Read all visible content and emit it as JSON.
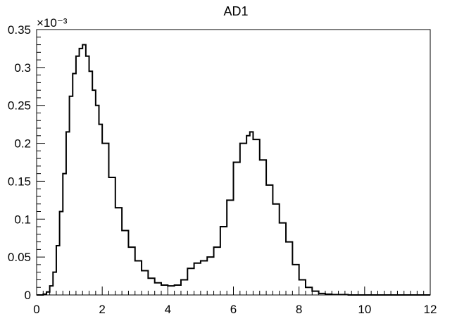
{
  "chart_data": {
    "type": "line",
    "style": "step-histogram",
    "title": "AD1",
    "xlabel": "",
    "ylabel": "",
    "xlim": [
      0,
      12
    ],
    "ylim": [
      0,
      0.35
    ],
    "y_exponent_label": "×10⁻³",
    "grid": false,
    "legend": "none",
    "x_ticks": [
      0,
      2,
      4,
      6,
      8,
      10,
      12
    ],
    "x_tick_labels": [
      "0",
      "2",
      "4",
      "6",
      "8",
      "10",
      "12"
    ],
    "y_ticks": [
      0,
      0.05,
      0.1,
      0.15,
      0.2,
      0.25,
      0.3,
      0.35
    ],
    "y_tick_labels": [
      "0",
      "0.05",
      "0.1",
      "0.15",
      "0.2",
      "0.25",
      "0.3",
      "0.35"
    ],
    "line_color": "#000000",
    "series": [
      {
        "x": [
          0.0,
          0.2,
          0.3,
          0.4,
          0.5,
          0.6,
          0.7,
          0.8,
          0.9,
          1.0,
          1.1,
          1.2,
          1.3,
          1.4,
          1.5,
          1.6,
          1.7,
          1.8,
          1.9,
          2.0,
          2.2,
          2.4,
          2.6,
          2.8,
          3.0,
          3.2,
          3.4,
          3.6,
          3.8,
          4.0,
          4.2,
          4.4,
          4.6,
          4.8,
          5.0,
          5.2,
          5.4,
          5.6,
          5.8,
          6.0,
          6.2,
          6.4,
          6.5,
          6.6,
          6.8,
          7.0,
          7.2,
          7.4,
          7.6,
          7.8,
          8.0,
          8.2,
          8.4,
          8.6,
          8.8,
          9.0,
          9.5,
          10.0,
          11.0,
          12.0
        ],
        "values": [
          0.0,
          0.001,
          0.004,
          0.012,
          0.03,
          0.065,
          0.11,
          0.16,
          0.215,
          0.262,
          0.292,
          0.315,
          0.325,
          0.33,
          0.315,
          0.295,
          0.27,
          0.25,
          0.225,
          0.2,
          0.155,
          0.115,
          0.085,
          0.063,
          0.045,
          0.032,
          0.022,
          0.016,
          0.013,
          0.012,
          0.013,
          0.02,
          0.035,
          0.042,
          0.045,
          0.05,
          0.063,
          0.09,
          0.125,
          0.175,
          0.2,
          0.21,
          0.215,
          0.205,
          0.178,
          0.145,
          0.12,
          0.095,
          0.07,
          0.04,
          0.02,
          0.01,
          0.005,
          0.002,
          0.001,
          0.0005,
          0.0,
          0.0,
          0.0,
          0.0
        ]
      }
    ]
  }
}
